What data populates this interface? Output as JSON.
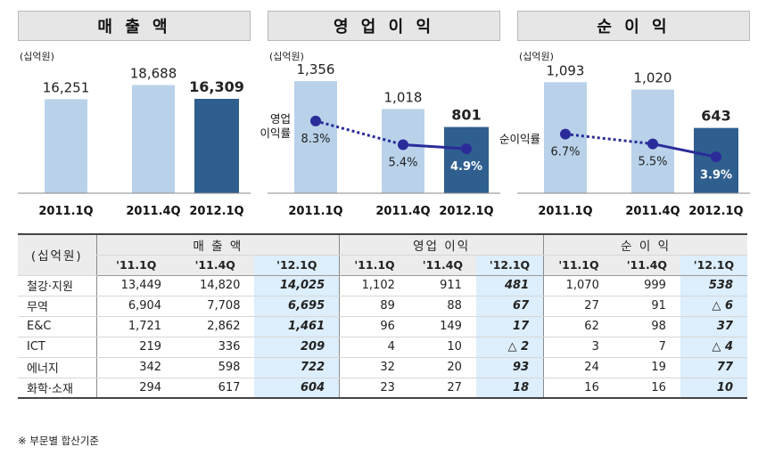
{
  "unit": "(십억원)",
  "footnote": "※ 부문별 합산기준",
  "chart_data": [
    {
      "type": "bar",
      "title": "매 출 액",
      "categories": [
        "2011.1Q",
        "2011.4Q",
        "2012.1Q"
      ],
      "values": [
        16251,
        18688,
        16309
      ],
      "value_labels": [
        "16,251",
        "18,688",
        "16,309"
      ],
      "ylim": [
        0,
        20000
      ]
    },
    {
      "type": "bar",
      "title": "영 업 이 익",
      "categories": [
        "2011.1Q",
        "2011.4Q",
        "2012.1Q"
      ],
      "values": [
        1356,
        1018,
        801
      ],
      "value_labels": [
        "1,356",
        "1,018",
        "801"
      ],
      "ylim": [
        0,
        1400
      ],
      "line": {
        "name_lines": [
          "영업",
          "이익률"
        ],
        "values": [
          8.3,
          5.4,
          4.9
        ],
        "labels": [
          "8.3%",
          "5.4%",
          "4.9%"
        ],
        "ylim": [
          0,
          12
        ]
      }
    },
    {
      "type": "bar",
      "title": "순 이 익",
      "categories": [
        "2011.1Q",
        "2011.4Q",
        "2012.1Q"
      ],
      "values": [
        1093,
        1020,
        643
      ],
      "value_labels": [
        "1,093",
        "1,020",
        "643"
      ],
      "ylim": [
        0,
        1140
      ],
      "line": {
        "name_lines": [
          "순이익률"
        ],
        "values": [
          6.7,
          5.5,
          3.9
        ],
        "labels": [
          "6.7%",
          "5.5%",
          "3.9%"
        ],
        "ylim": [
          0,
          12
        ]
      }
    },
    {
      "type": "table",
      "unit": "(십억원)",
      "groups": [
        "매 출 액",
        "영업 이익",
        "순 이 익"
      ],
      "periods": [
        "'11.1Q",
        "'11.4Q",
        "'12.1Q"
      ],
      "rows": [
        {
          "name": "철강·지원",
          "values": [
            "13,449",
            "14,820",
            "14,025",
            "1,102",
            "911",
            "481",
            "1,070",
            "999",
            "538"
          ]
        },
        {
          "name": "무역",
          "values": [
            "6,904",
            "7,708",
            "6,695",
            "89",
            "88",
            "67",
            "27",
            "91",
            "△ 6"
          ]
        },
        {
          "name": "E&C",
          "values": [
            "1,721",
            "2,862",
            "1,461",
            "96",
            "149",
            "17",
            "62",
            "98",
            "37"
          ]
        },
        {
          "name": "ICT",
          "values": [
            "219",
            "336",
            "209",
            "4",
            "10",
            "△ 2",
            "3",
            "7",
            "△ 4"
          ]
        },
        {
          "name": "에너지",
          "values": [
            "342",
            "598",
            "722",
            "32",
            "20",
            "93",
            "24",
            "19",
            "77"
          ]
        },
        {
          "name": "화학·소재",
          "values": [
            "294",
            "617",
            "604",
            "23",
            "27",
            "18",
            "16",
            "16",
            "10"
          ]
        }
      ]
    }
  ],
  "colors": {
    "bar_light": "#b9d2ea",
    "bar_dark": "#2f5f8f",
    "line": "#2b2b9a",
    "highlight": "#ddeefc",
    "header_bg": "#e6e6e6"
  }
}
